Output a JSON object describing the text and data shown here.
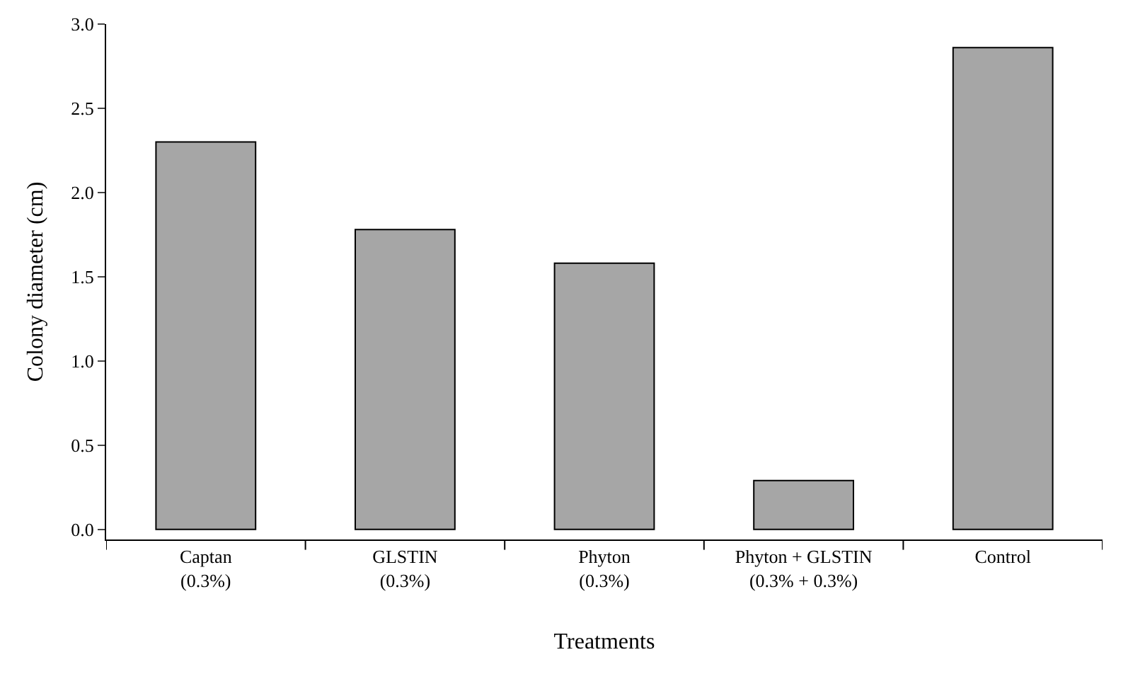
{
  "chart_data": {
    "type": "bar",
    "xlabel": "Treatments",
    "ylabel": "Colony diameter (cm)",
    "categories": [
      "Captan\n(0.3%)",
      "GLSTIN\n(0.3%)",
      "Phyton\n(0.3%)",
      "Phyton + GLSTIN\n(0.3% + 0.3%)",
      "Control"
    ],
    "values": [
      2.3,
      1.78,
      1.58,
      0.29,
      2.86
    ],
    "color": "#a6a6a6",
    "ylim": [
      -0.06,
      3.0
    ],
    "yticks": [
      {
        "value": 0,
        "label": "0.0"
      },
      {
        "value": 0.5,
        "label": "0.5"
      },
      {
        "value": 1,
        "label": "1.0"
      },
      {
        "value": 1.5,
        "label": "1.5"
      },
      {
        "value": 2,
        "label": "2.0"
      },
      {
        "value": 2.5,
        "label": "2.5"
      },
      {
        "value": 3,
        "label": "3.0"
      }
    ]
  }
}
